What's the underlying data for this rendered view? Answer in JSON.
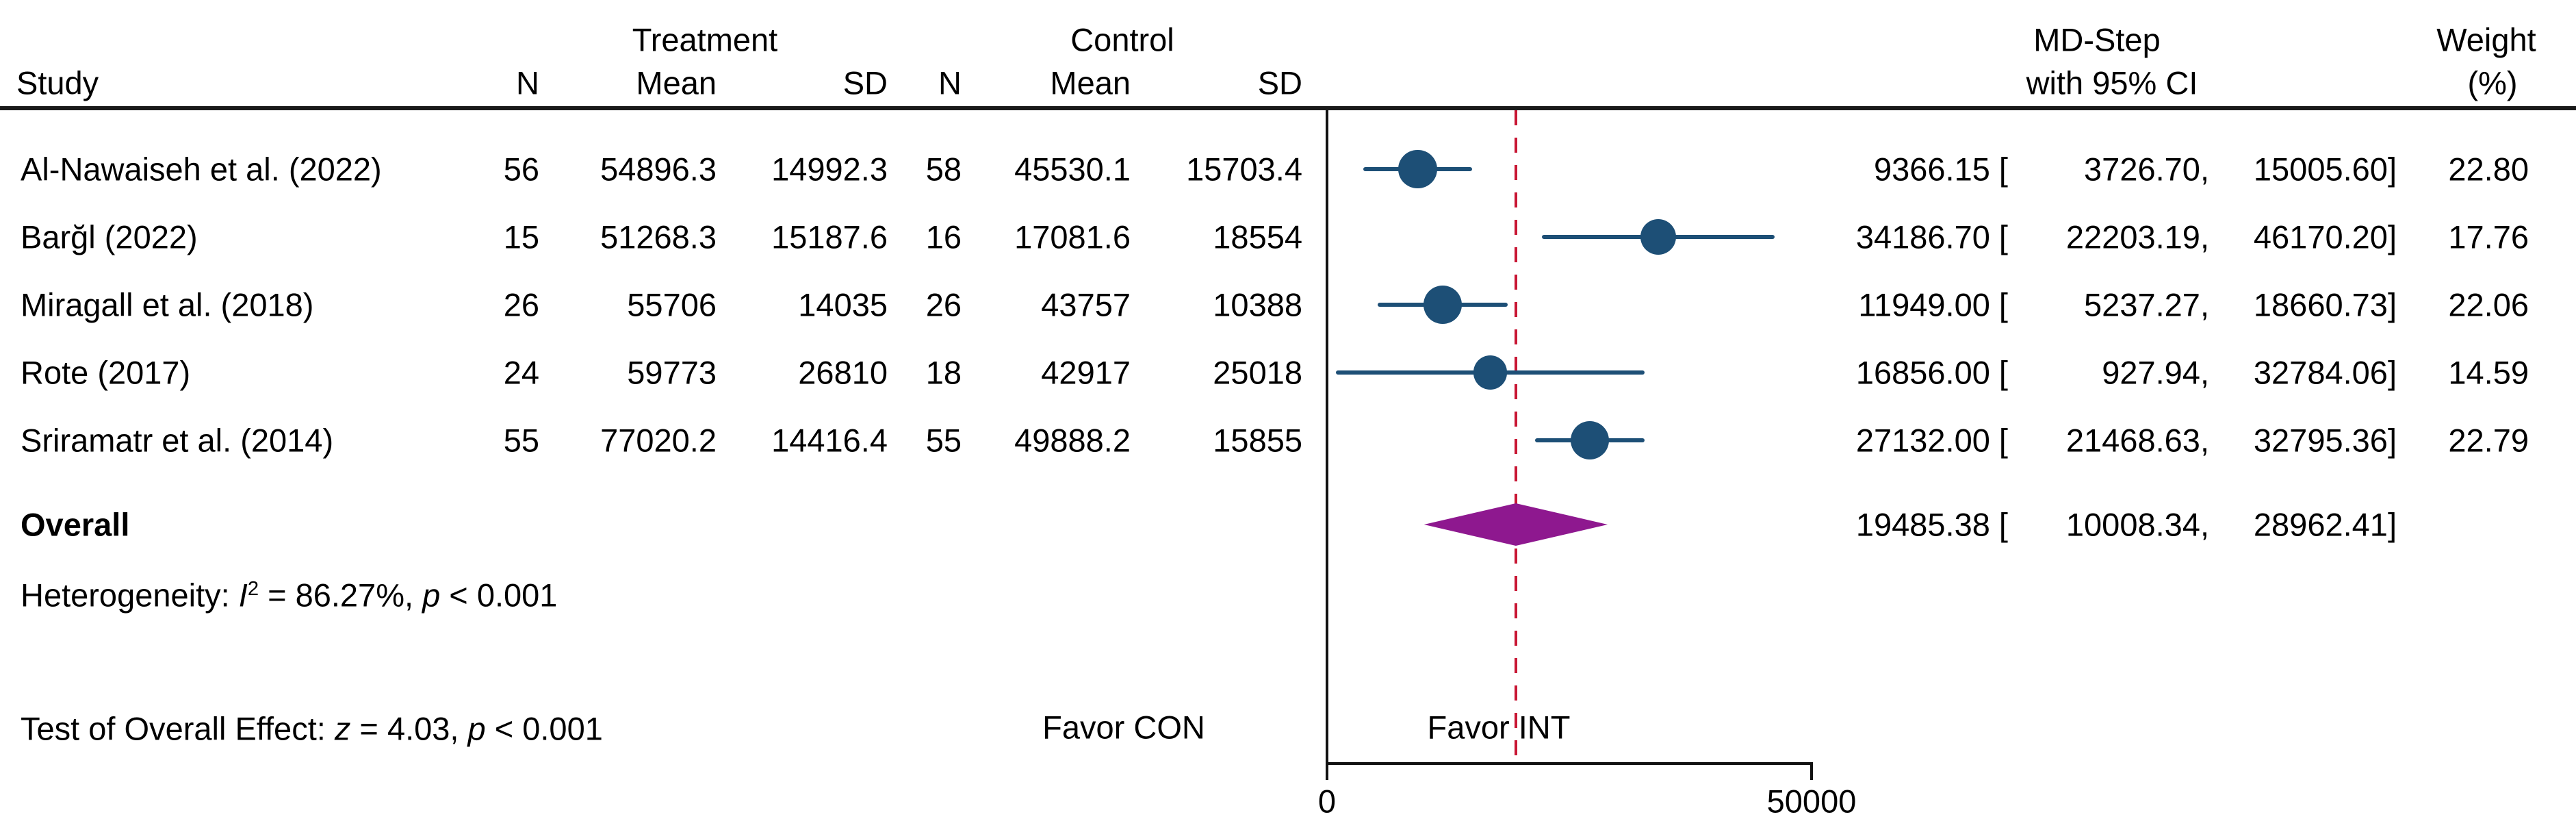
{
  "header": {
    "study_label": "Study",
    "group_treatment": "Treatment",
    "group_control": "Control",
    "sub": [
      "N",
      "Mean",
      "SD",
      "N",
      "Mean",
      "SD"
    ],
    "effect_line1": "MD-Step",
    "effect_line2": "with 95% CI",
    "weight_line1": "Weight",
    "weight_line2": "(%)"
  },
  "rows": [
    {
      "study": "Al-Nawaiseh et al. (2022)",
      "t_n": "56",
      "t_mean": "54896.3",
      "t_sd": "14992.3",
      "c_n": "58",
      "c_mean": "45530.1",
      "c_sd": "15703.4",
      "est_label": "9366.15 [",
      "lo_label": "3726.70,",
      "hi_label": "15005.60]",
      "weight": "22.80"
    },
    {
      "study": "Barğl (2022)",
      "t_n": "15",
      "t_mean": "51268.3",
      "t_sd": "15187.6",
      "c_n": "16",
      "c_mean": "17081.6",
      "c_sd": "18554",
      "est_label": "34186.70 [",
      "lo_label": "22203.19,",
      "hi_label": "46170.20]",
      "weight": "17.76"
    },
    {
      "study": "Miragall et al. (2018)",
      "t_n": "26",
      "t_mean": "55706",
      "t_sd": "14035",
      "c_n": "26",
      "c_mean": "43757",
      "c_sd": "10388",
      "est_label": "11949.00 [",
      "lo_label": "5237.27,",
      "hi_label": "18660.73]",
      "weight": "22.06"
    },
    {
      "study": "Rote (2017)",
      "t_n": "24",
      "t_mean": "59773",
      "t_sd": "26810",
      "c_n": "18",
      "c_mean": "42917",
      "c_sd": "25018",
      "est_label": "16856.00 [",
      "lo_label": "927.94,",
      "hi_label": "32784.06]",
      "weight": "14.59"
    },
    {
      "study": "Sriramatr et al. (2014)",
      "t_n": "55",
      "t_mean": "77020.2",
      "t_sd": "14416.4",
      "c_n": "55",
      "c_mean": "49888.2",
      "c_sd": "15855",
      "est_label": "27132.00 [",
      "lo_label": "21468.63,",
      "hi_label": "32795.36]",
      "weight": "22.79"
    }
  ],
  "overall": {
    "label": "Overall",
    "est_label": "19485.38 [",
    "lo_label": "10008.34,",
    "hi_label": "28962.41]"
  },
  "stats": {
    "het_prefix": "Heterogeneity: ",
    "het_stat": "I",
    "het_sup": "2",
    "het_rest": " = 86.27%, ",
    "het_p_label": "p",
    "het_p_value": " < 0.001",
    "test_prefix": "Test of Overall Effect: ",
    "test_stat": "z",
    "test_mid": " = 4.03, ",
    "test_p_label": "p",
    "test_p_value": " < 0.001"
  },
  "labels": {
    "favor_left": "Favor CON",
    "favor_right": "Favor INT",
    "tick0": "0",
    "tick50000": "50000"
  },
  "colors": {
    "marker_blue": "#1D4F76",
    "ref_red": "#C81634",
    "diamond_purple": "#8E188F",
    "line_black": "#111111"
  },
  "chart_data": {
    "type": "forest",
    "title": "",
    "effect_measure": "MD-Step with 95% CI",
    "xlabel": "",
    "axis": {
      "tick_values": [
        0,
        50000
      ],
      "zero_line": 0,
      "ref_line": 19485.38
    },
    "favor_labels": {
      "left": "Favor CON",
      "right": "Favor INT"
    },
    "studies": [
      {
        "name": "Al-Nawaiseh et al. (2022)",
        "n_treat": 56,
        "mean_treat": 54896.3,
        "sd_treat": 14992.3,
        "n_ctrl": 58,
        "mean_ctrl": 45530.1,
        "sd_ctrl": 15703.4,
        "effect": 9366.15,
        "ci_low": 3726.7,
        "ci_high": 15005.6,
        "weight_pct": 22.8
      },
      {
        "name": "Barğl (2022)",
        "n_treat": 15,
        "mean_treat": 51268.3,
        "sd_treat": 15187.6,
        "n_ctrl": 16,
        "mean_ctrl": 17081.6,
        "sd_ctrl": 18554,
        "effect": 34186.7,
        "ci_low": 22203.19,
        "ci_high": 46170.2,
        "weight_pct": 17.76
      },
      {
        "name": "Miragall et al. (2018)",
        "n_treat": 26,
        "mean_treat": 55706,
        "sd_treat": 14035,
        "n_ctrl": 26,
        "mean_ctrl": 43757,
        "sd_ctrl": 10388,
        "effect": 11949.0,
        "ci_low": 5237.27,
        "ci_high": 18660.73,
        "weight_pct": 22.06
      },
      {
        "name": "Rote (2017)",
        "n_treat": 24,
        "mean_treat": 59773,
        "sd_treat": 26810,
        "n_ctrl": 18,
        "mean_ctrl": 42917,
        "sd_ctrl": 25018,
        "effect": 16856.0,
        "ci_low": 927.94,
        "ci_high": 32784.06,
        "weight_pct": 14.59
      },
      {
        "name": "Sriramatr et al. (2014)",
        "n_treat": 55,
        "mean_treat": 77020.2,
        "sd_treat": 14416.4,
        "n_ctrl": 55,
        "mean_ctrl": 49888.2,
        "sd_ctrl": 15855,
        "effect": 27132.0,
        "ci_low": 21468.63,
        "ci_high": 32795.36,
        "weight_pct": 22.79
      }
    ],
    "overall": {
      "effect": 19485.38,
      "ci_low": 10008.34,
      "ci_high": 28962.41
    },
    "heterogeneity": {
      "I2_pct": 86.27,
      "p": "< 0.001"
    },
    "overall_test": {
      "z": 4.03,
      "p": "< 0.001"
    }
  }
}
